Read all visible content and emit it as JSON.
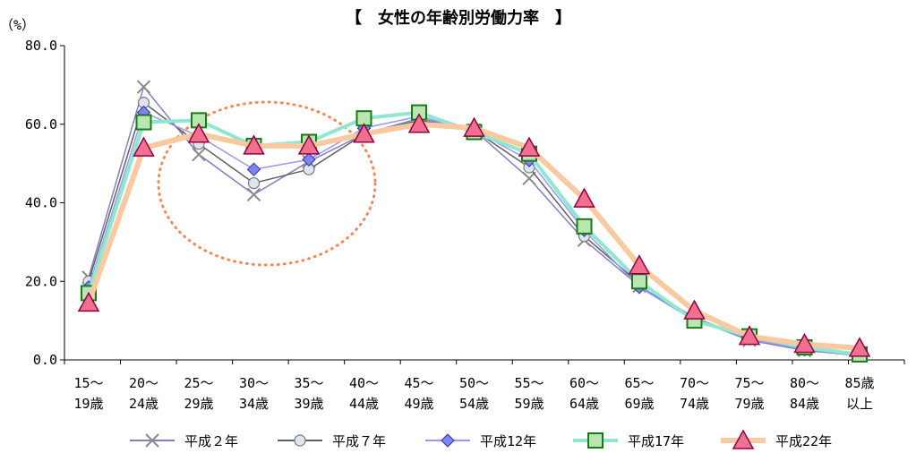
{
  "chart_data": {
    "type": "line",
    "title": "【　女性の年齢別労働力率　】",
    "unit_label": "（%）",
    "ylim": [
      0,
      80
    ],
    "y_ticks": [
      "0.0",
      "20.0",
      "40.0",
      "60.0",
      "80.0"
    ],
    "categories": [
      [
        "15～",
        "19歳"
      ],
      [
        "20～",
        "24歳"
      ],
      [
        "25～",
        "29歳"
      ],
      [
        "30～",
        "34歳"
      ],
      [
        "35～",
        "39歳"
      ],
      [
        "40～",
        "44歳"
      ],
      [
        "45～",
        "49歳"
      ],
      [
        "50～",
        "54歳"
      ],
      [
        "55～",
        "59歳"
      ],
      [
        "60～",
        "64歳"
      ],
      [
        "65～",
        "69歳"
      ],
      [
        "70～",
        "74歳"
      ],
      [
        "75～",
        "79歳"
      ],
      [
        "80～",
        "84歳"
      ],
      [
        "85歳",
        "以上"
      ]
    ],
    "legend_position": "bottom",
    "grid": false,
    "series": [
      {
        "name": "平成２年",
        "color": "#8080c0",
        "marker": "x",
        "values": [
          21.0,
          69.5,
          52.3,
          42.1,
          50.5,
          57.5,
          61.5,
          58.5,
          46.2,
          30.5,
          18.8,
          10.3,
          5.0,
          2.4,
          1.1
        ]
      },
      {
        "name": "平成７年",
        "color": "#606060",
        "marker": "circle",
        "values": [
          20.0,
          65.5,
          55.0,
          45.0,
          48.5,
          57.5,
          61.0,
          58.5,
          49.0,
          31.5,
          19.5,
          10.7,
          5.5,
          2.6,
          1.3
        ]
      },
      {
        "name": "平成12年",
        "color": "#9999ee",
        "marker": "diamond",
        "values": [
          18.5,
          63.0,
          57.0,
          48.5,
          51.0,
          59.0,
          62.0,
          58.5,
          50.8,
          33.0,
          18.5,
          10.0,
          5.4,
          2.6,
          1.2
        ]
      },
      {
        "name": "平成17年",
        "color": "#8ee8d0",
        "marker": "square",
        "values": [
          17.0,
          60.5,
          61.0,
          54.5,
          55.5,
          61.5,
          63.0,
          58.0,
          52.5,
          34.0,
          20.0,
          10.0,
          6.0,
          3.2,
          1.4
        ]
      },
      {
        "name": "平成22年",
        "color": "#f9c9a0",
        "marker": "triangle",
        "values": [
          14.5,
          54.0,
          57.5,
          54.5,
          54.5,
          57.5,
          60.0,
          59.0,
          54.0,
          41.0,
          24.0,
          12.5,
          6.0,
          4.0,
          3.0
        ]
      }
    ]
  }
}
